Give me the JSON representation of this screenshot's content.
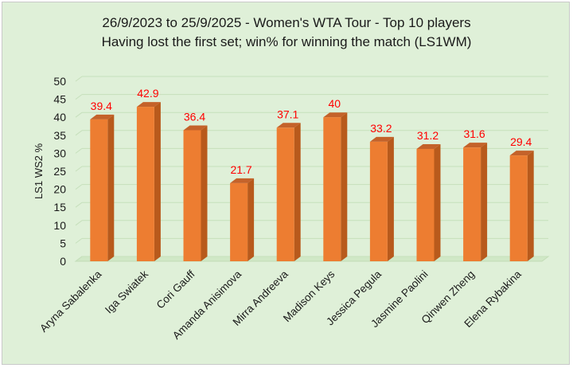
{
  "chart_data": {
    "type": "bar",
    "title": "26/9/2023 to 25/9/2025 - Women's WTA Tour - Top 10 players",
    "subtitle": "Having lost the first set; win% for winning the match (LS1WM)",
    "ylabel": "LS1 WS2 %",
    "xlabel": "",
    "categories": [
      "Aryna Sabalenka",
      "Iga Swiatek",
      "Cori Gauff",
      "Amanda Anisimova",
      "Mirra Andreeva",
      "Madison Keys",
      "Jessica Pegula",
      "Jasmine Paolini",
      "Qinwen Zheng",
      "Elena Rybakina"
    ],
    "values": [
      39.4,
      42.9,
      36.4,
      21.7,
      37.1,
      40,
      33.2,
      31.2,
      31.6,
      29.4
    ],
    "data_labels": [
      "39.4",
      "42.9",
      "36.4",
      "21.7",
      "37.1",
      "40",
      "33.2",
      "31.2",
      "31.6",
      "29.4"
    ],
    "ylim": [
      0,
      50
    ],
    "yticks": [
      "0",
      "5",
      "10",
      "15",
      "20",
      "25",
      "30",
      "35",
      "40",
      "45",
      "50"
    ],
    "grid": true,
    "legend": "none",
    "bar_color": "#ed7d31",
    "bar_side_color": "#b85a1c",
    "label_color": "#ff0000",
    "background_color": "#dff0d8"
  }
}
